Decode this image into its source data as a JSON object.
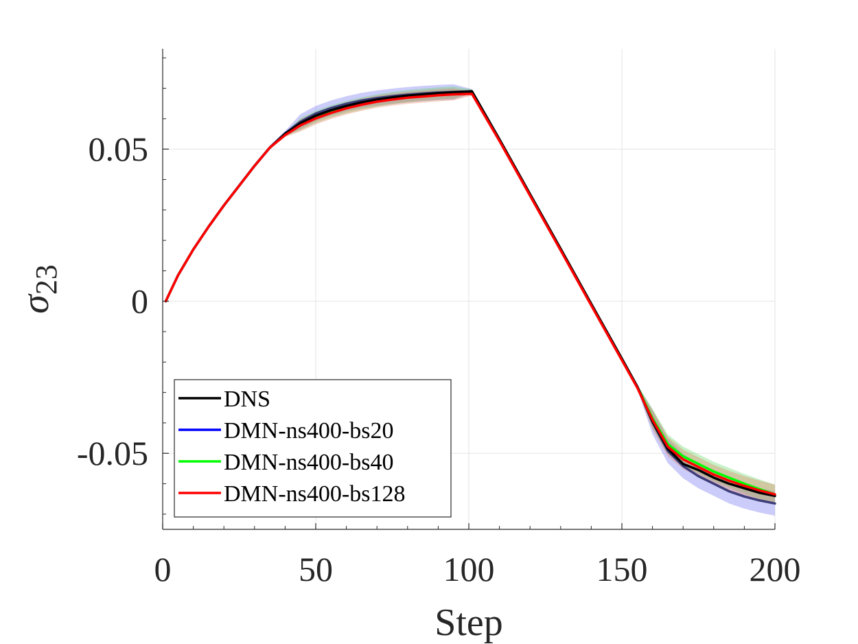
{
  "chart_data": {
    "type": "line",
    "xlabel": "Step",
    "ylabel_base": "σ",
    "ylabel_sub": "23",
    "xlim": [
      0,
      200
    ],
    "ylim": [
      -0.075,
      0.083
    ],
    "xticks": [
      0,
      50,
      100,
      150,
      200
    ],
    "xtick_labels": [
      "0",
      "50",
      "100",
      "150",
      "200"
    ],
    "yticks": [
      -0.05,
      0,
      0.05
    ],
    "ytick_labels": [
      "-0.05",
      "0",
      "0.05"
    ],
    "grid": true,
    "legend_position": "bottom-left",
    "x": [
      1,
      5,
      10,
      15,
      20,
      25,
      30,
      35,
      40,
      45,
      50,
      55,
      60,
      65,
      70,
      75,
      80,
      85,
      90,
      95,
      101,
      110,
      120,
      130,
      140,
      150,
      155,
      160,
      165,
      170,
      175,
      180,
      185,
      190,
      195,
      200
    ],
    "series": [
      {
        "name": "DNS",
        "color": "#000000",
        "values": [
          0.0,
          0.0085,
          0.017,
          0.0245,
          0.0315,
          0.038,
          0.0445,
          0.0505,
          0.055,
          0.0585,
          0.061,
          0.0628,
          0.0642,
          0.0654,
          0.0663,
          0.067,
          0.0676,
          0.068,
          0.0684,
          0.0687,
          0.069,
          0.0532,
          0.0352,
          0.0172,
          -0.0009,
          -0.0189,
          -0.028,
          -0.0395,
          -0.0485,
          -0.0535,
          -0.0555,
          -0.058,
          -0.06,
          -0.0615,
          -0.063,
          -0.064
        ],
        "band": 0.0
      },
      {
        "name": "DMN-ns400-bs20",
        "color": "#0000ff",
        "band_color": "#6e6ef0",
        "values": [
          0.0,
          0.0085,
          0.017,
          0.0245,
          0.0315,
          0.038,
          0.0445,
          0.0505,
          0.0552,
          0.059,
          0.0617,
          0.0635,
          0.0649,
          0.066,
          0.0668,
          0.0674,
          0.0679,
          0.0683,
          0.0686,
          0.0688,
          0.069,
          0.0532,
          0.0352,
          0.0172,
          -0.0009,
          -0.0189,
          -0.028,
          -0.0398,
          -0.0492,
          -0.0542,
          -0.0575,
          -0.06,
          -0.0625,
          -0.0642,
          -0.0655,
          -0.0665
        ],
        "band": 0.0025
      },
      {
        "name": "DMN-ns400-bs40",
        "color": "#00ff00",
        "band_color": "#5ed65e",
        "values": [
          0.0,
          0.0085,
          0.017,
          0.0245,
          0.0315,
          0.038,
          0.0445,
          0.0505,
          0.0548,
          0.0582,
          0.0606,
          0.0624,
          0.0638,
          0.065,
          0.066,
          0.0668,
          0.0674,
          0.0679,
          0.0683,
          0.0686,
          0.069,
          0.0532,
          0.0352,
          0.0172,
          -0.0009,
          -0.0189,
          -0.028,
          -0.0385,
          -0.047,
          -0.051,
          -0.0535,
          -0.056,
          -0.058,
          -0.06,
          -0.0618,
          -0.0635
        ],
        "band": 0.002
      },
      {
        "name": "DMN-ns400-bs128",
        "color": "#ff0000",
        "band_color": "#e07a5a",
        "values": [
          0.0,
          0.0085,
          0.017,
          0.0245,
          0.0315,
          0.038,
          0.0445,
          0.0505,
          0.0546,
          0.0578,
          0.0601,
          0.0619,
          0.0634,
          0.0646,
          0.0656,
          0.0663,
          0.0669,
          0.0673,
          0.0677,
          0.068,
          0.0682,
          0.0527,
          0.0347,
          0.0167,
          -0.0014,
          -0.0194,
          -0.0284,
          -0.039,
          -0.0478,
          -0.052,
          -0.0545,
          -0.057,
          -0.059,
          -0.0607,
          -0.0622,
          -0.0635
        ],
        "band": 0.002
      }
    ]
  }
}
